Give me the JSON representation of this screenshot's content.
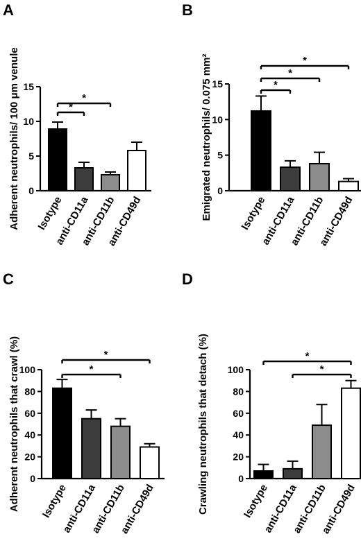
{
  "figure": {
    "background": "#ffffff",
    "bar_colors": [
      "#000000",
      "#3c3c3c",
      "#8c8c8c",
      "#ffffff"
    ],
    "significance_marker": "*"
  },
  "chart_data": [
    {
      "panel": "A",
      "type": "bar",
      "ylabel": "Adherent neutrophils/ 100 μm venule",
      "categories": [
        "Isotype",
        "anti-CD11a",
        "anti-CD11b",
        "anti-CD49d"
      ],
      "values": [
        8.9,
        3.3,
        2.3,
        5.8
      ],
      "errors": [
        1.0,
        0.8,
        0.4,
        1.2
      ],
      "ylim": [
        0,
        15
      ],
      "yticks": [
        "0",
        "5",
        "10",
        "15"
      ],
      "ytick_values": [
        0,
        5,
        10,
        15
      ],
      "significance": [
        {
          "from": 0,
          "to": 1,
          "label": "*"
        },
        {
          "from": 0,
          "to": 2,
          "label": "*"
        }
      ]
    },
    {
      "panel": "B",
      "type": "bar",
      "ylabel": "Emigrated neutrophils/ 0.075 mm²",
      "categories": [
        "Isotype",
        "anti-CD11a",
        "anti-CD11b",
        "anti-CD49d"
      ],
      "values": [
        11.2,
        3.3,
        3.8,
        1.3
      ],
      "errors": [
        2.1,
        0.9,
        1.6,
        0.4
      ],
      "ylim": [
        0,
        15
      ],
      "yticks": [
        "0",
        "5",
        "10",
        "15"
      ],
      "ytick_values": [
        0,
        5,
        10,
        15
      ],
      "significance": [
        {
          "from": 0,
          "to": 1,
          "label": "*"
        },
        {
          "from": 0,
          "to": 2,
          "label": "*"
        },
        {
          "from": 0,
          "to": 3,
          "label": "*"
        }
      ]
    },
    {
      "panel": "C",
      "type": "bar",
      "ylabel": "Adherent neutrophils that crawl (%)",
      "categories": [
        "Isotype",
        "anti-CD11a",
        "anti-CD11b",
        "anti-CD49d"
      ],
      "values": [
        83,
        55,
        48,
        29
      ],
      "errors": [
        8,
        8,
        7,
        3
      ],
      "ylim": [
        0,
        100
      ],
      "yticks": [
        "0",
        "20",
        "40",
        "60",
        "80",
        "100"
      ],
      "ytick_values": [
        0,
        20,
        40,
        60,
        80,
        100
      ],
      "significance": [
        {
          "from": 0,
          "to": 2,
          "label": "*"
        },
        {
          "from": 0,
          "to": 3,
          "label": "*"
        }
      ]
    },
    {
      "panel": "D",
      "type": "bar",
      "ylabel": "Crawling neutrophils that detach (%)",
      "categories": [
        "Isotype",
        "anti-CD11a",
        "anti-CD11b",
        "anti-CD49d"
      ],
      "values": [
        7,
        9,
        49,
        83
      ],
      "errors": [
        6,
        7,
        19,
        7
      ],
      "ylim": [
        0,
        100
      ],
      "yticks": [
        "0",
        "20",
        "40",
        "60",
        "80",
        "100"
      ],
      "ytick_values": [
        0,
        20,
        40,
        60,
        80,
        100
      ],
      "significance": [
        {
          "from": 0,
          "to": 3,
          "label": "*"
        },
        {
          "from": 1,
          "to": 3,
          "label": "*"
        }
      ]
    }
  ]
}
